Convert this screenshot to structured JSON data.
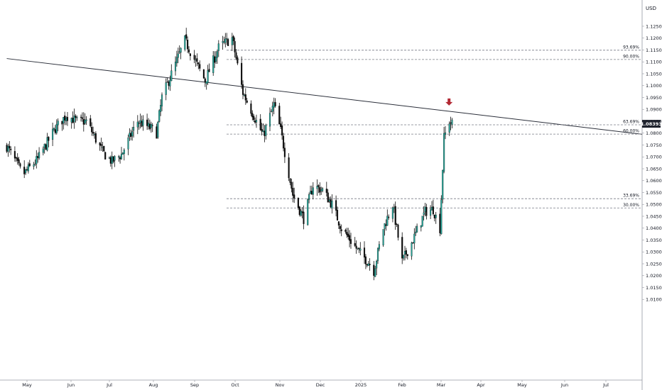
{
  "chart_data": {
    "type": "candlestick",
    "currency_label": "USD",
    "current_price": "1.08393",
    "x_ticks": [
      "May",
      "Jun",
      "Jul",
      "Aug",
      "Sep",
      "Oct",
      "Nov",
      "Dec",
      "2025",
      "Feb",
      "Mar",
      "Apr",
      "May",
      "Jun",
      "Jul"
    ],
    "y_ticks": [
      "1.12500",
      "1.12000",
      "1.11500",
      "1.11000",
      "1.10500",
      "1.10000",
      "1.09500",
      "1.09000",
      "1.08500",
      "1.08000",
      "1.07500",
      "1.07000",
      "1.06500",
      "1.06000",
      "1.05500",
      "1.05000",
      "1.04500",
      "1.04000",
      "1.03500",
      "1.03000",
      "1.02500",
      "1.02000",
      "1.01500",
      "1.01000"
    ],
    "ylim": [
      1.006,
      1.1315
    ],
    "fib_levels": [
      {
        "label": "93.69%",
        "value": 1.1149
      },
      {
        "label": "90.00%",
        "value": 1.111
      },
      {
        "label": "63.69%",
        "value": 1.0835
      },
      {
        "label": "60.00%",
        "value": 1.0796
      },
      {
        "label": "33.69%",
        "value": 1.0524
      },
      {
        "label": "30.00%",
        "value": 1.0485
      }
    ],
    "trendline": {
      "start": {
        "date": "2024-04-16",
        "price": 1.1114
      },
      "end": {
        "date": "2025-07-31",
        "price": 1.0795
      }
    },
    "marker": {
      "type": "down-arrow",
      "date": "2025-03-10",
      "price": 1.0895
    },
    "price_path": [
      {
        "date": "2024-04-16",
        "close": 1.0745
      },
      {
        "date": "2024-04-28",
        "close": 1.0625
      },
      {
        "date": "2024-05-09",
        "close": 1.069
      },
      {
        "date": "2024-05-22",
        "close": 1.082
      },
      {
        "date": "2024-05-30",
        "close": 1.0875
      },
      {
        "date": "2024-06-07",
        "close": 1.085
      },
      {
        "date": "2024-06-14",
        "close": 1.085
      },
      {
        "date": "2024-06-26",
        "close": 1.072
      },
      {
        "date": "2024-07-03",
        "close": 1.068
      },
      {
        "date": "2024-07-10",
        "close": 1.071
      },
      {
        "date": "2024-07-22",
        "close": 1.085
      },
      {
        "date": "2024-08-01",
        "close": 1.082
      },
      {
        "date": "2024-08-05",
        "close": 1.08
      },
      {
        "date": "2024-08-09",
        "close": 1.095
      },
      {
        "date": "2024-08-26",
        "close": 1.119
      },
      {
        "date": "2024-09-03",
        "close": 1.11
      },
      {
        "date": "2024-09-10",
        "close": 1.102
      },
      {
        "date": "2024-09-20",
        "close": 1.116
      },
      {
        "date": "2024-09-30",
        "close": 1.12
      },
      {
        "date": "2024-10-08",
        "close": 1.097
      },
      {
        "date": "2024-10-23",
        "close": 1.079
      },
      {
        "date": "2024-10-31",
        "close": 1.092
      },
      {
        "date": "2024-11-05",
        "close": 1.081
      },
      {
        "date": "2024-11-14",
        "close": 1.054
      },
      {
        "date": "2024-11-22",
        "close": 1.044
      },
      {
        "date": "2024-11-29",
        "close": 1.058
      },
      {
        "date": "2024-12-06",
        "close": 1.056
      },
      {
        "date": "2024-12-13",
        "close": 1.05
      },
      {
        "date": "2024-12-20",
        "close": 1.04
      },
      {
        "date": "2025-01-02",
        "close": 1.03
      },
      {
        "date": "2025-01-10",
        "close": 1.025
      },
      {
        "date": "2025-01-13",
        "close": 1.022
      },
      {
        "date": "2025-01-20",
        "close": 1.04
      },
      {
        "date": "2025-01-27",
        "close": 1.05
      },
      {
        "date": "2025-02-03",
        "close": 1.026
      },
      {
        "date": "2025-02-11",
        "close": 1.035
      },
      {
        "date": "2025-02-20",
        "close": 1.047
      },
      {
        "date": "2025-02-26",
        "close": 1.048
      },
      {
        "date": "2025-03-03",
        "close": 1.04
      },
      {
        "date": "2025-03-06",
        "close": 1.078
      },
      {
        "date": "2025-03-10",
        "close": 1.085
      },
      {
        "date": "2025-03-12",
        "close": 1.0839
      }
    ]
  }
}
